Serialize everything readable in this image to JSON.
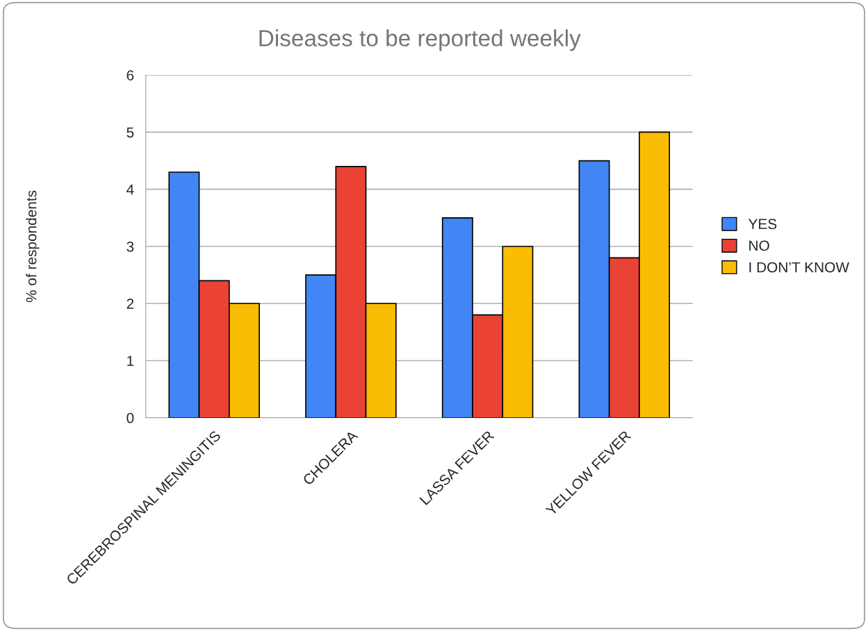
{
  "chart_data": {
    "type": "bar",
    "title": "Diseases to be reported weekly",
    "ylabel": "% of respondents",
    "categories": [
      "CEREBROSPINAL MENINGITIS",
      "CHOLERA",
      "LASSA FEVER",
      "YELLOW FEVER"
    ],
    "series": [
      {
        "name": "YES",
        "color": "#4285f4",
        "values": [
          4.3,
          2.5,
          3.5,
          4.5
        ]
      },
      {
        "name": "NO",
        "color": "#ea4335",
        "values": [
          2.4,
          4.4,
          1.8,
          2.8
        ]
      },
      {
        "name": "I DON’T KNOW",
        "color": "#fbbc04",
        "values": [
          2.0,
          2.0,
          3.0,
          5.0
        ]
      }
    ],
    "ylim": [
      0,
      6
    ],
    "yticks": [
      0,
      1,
      2,
      3,
      4,
      5,
      6
    ],
    "grid": "y",
    "legend": "right"
  }
}
